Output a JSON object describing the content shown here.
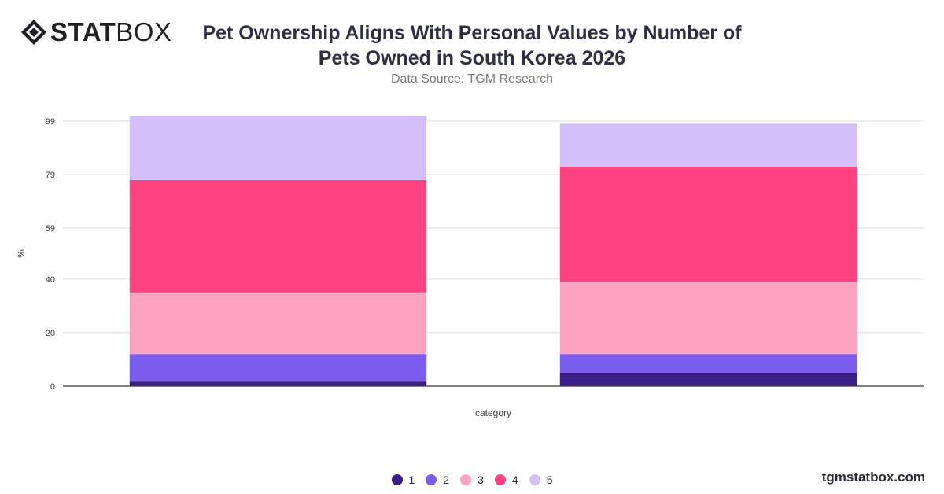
{
  "brand": {
    "logo_bold": "STAT",
    "logo_light": "BOX",
    "logo_icon": "statbox-diamond-icon",
    "footer": "tgmstatbox.com"
  },
  "header": {
    "title": "Pet Ownership Aligns With Personal Values by Number of Pets Owned in South Korea 2026",
    "subtitle": "Data Source: TGM Research"
  },
  "chart_data": {
    "type": "bar",
    "stacked": true,
    "categories": [
      "",
      ""
    ],
    "xlabel": "category",
    "ylabel": "%",
    "ylim": [
      0,
      99
    ],
    "yticks": [
      0,
      20,
      40,
      59,
      79,
      99
    ],
    "grid": true,
    "legend_position": "bottom",
    "series": [
      {
        "name": "1",
        "color": "#3b1f86",
        "values": [
          2,
          5
        ]
      },
      {
        "name": "2",
        "color": "#7b5cef",
        "values": [
          10,
          7
        ]
      },
      {
        "name": "3",
        "color": "#fca2c1",
        "values": [
          23,
          27
        ]
      },
      {
        "name": "4",
        "color": "#fe4181",
        "values": [
          42,
          43
        ]
      },
      {
        "name": "5",
        "color": "#d3befa",
        "values": [
          24,
          16
        ]
      }
    ]
  }
}
